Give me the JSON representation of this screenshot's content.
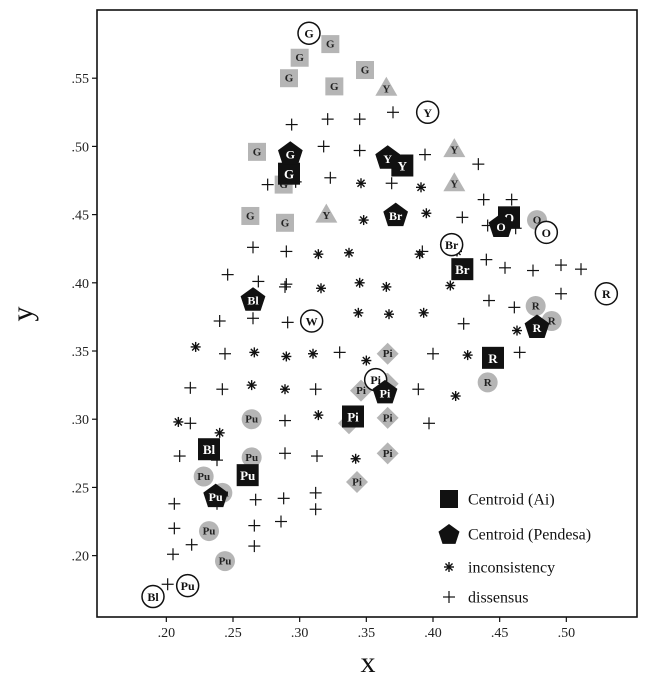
{
  "chart_data": {
    "type": "scatter",
    "xlabel": "x",
    "ylabel": "y",
    "xlim": [
      0.148,
      0.553
    ],
    "ylim": [
      0.155,
      0.6
    ],
    "x_ticks": [
      0.2,
      0.25,
      0.3,
      0.35,
      0.4,
      0.45,
      0.5
    ],
    "x_tick_labels": [
      ".20",
      ".25",
      ".30",
      ".35",
      ".40",
      ".45",
      ".50"
    ],
    "y_ticks": [
      0.2,
      0.25,
      0.3,
      0.35,
      0.4,
      0.45,
      0.5,
      0.55
    ],
    "y_tick_labels": [
      ".20",
      ".25",
      ".30",
      ".35",
      ".40",
      ".45",
      ".50",
      ".55"
    ],
    "grid": false,
    "legend": {
      "position": "bottom-right",
      "entries": [
        {
          "marker": "square",
          "label": "Centroid (Ai)"
        },
        {
          "marker": "pentagon",
          "label": "Centroid (Pendesa)"
        },
        {
          "marker": "asterisk",
          "label": "inconsistency"
        },
        {
          "marker": "plus",
          "label": "dissensus"
        }
      ]
    },
    "series": [
      {
        "name": "Centroid (Ai)",
        "marker": "square",
        "points": [
          {
            "x": 0.292,
            "y": 0.48,
            "label": "G"
          },
          {
            "x": 0.377,
            "y": 0.486,
            "label": "Y"
          },
          {
            "x": 0.457,
            "y": 0.448,
            "label": "O"
          },
          {
            "x": 0.422,
            "y": 0.41,
            "label": "Br"
          },
          {
            "x": 0.445,
            "y": 0.345,
            "label": "R"
          },
          {
            "x": 0.34,
            "y": 0.302,
            "label": "Pi"
          },
          {
            "x": 0.232,
            "y": 0.278,
            "label": "Bl"
          },
          {
            "x": 0.261,
            "y": 0.259,
            "label": "Pu"
          }
        ]
      },
      {
        "name": "Centroid (Pendesa)",
        "marker": "pentagon",
        "points": [
          {
            "x": 0.293,
            "y": 0.495,
            "label": "G"
          },
          {
            "x": 0.366,
            "y": 0.492,
            "label": "Y"
          },
          {
            "x": 0.451,
            "y": 0.442,
            "label": "O"
          },
          {
            "x": 0.372,
            "y": 0.45,
            "label": "Br"
          },
          {
            "x": 0.478,
            "y": 0.368,
            "label": "R"
          },
          {
            "x": 0.364,
            "y": 0.32,
            "label": "Pi"
          },
          {
            "x": 0.265,
            "y": 0.388,
            "label": "Bl"
          },
          {
            "x": 0.237,
            "y": 0.244,
            "label": "Pu"
          }
        ]
      },
      {
        "name": "circled",
        "marker": "circle-open",
        "points": [
          {
            "x": 0.307,
            "y": 0.583,
            "label": "G"
          },
          {
            "x": 0.396,
            "y": 0.525,
            "label": "Y"
          },
          {
            "x": 0.485,
            "y": 0.437,
            "label": "O"
          },
          {
            "x": 0.414,
            "y": 0.428,
            "label": "Br"
          },
          {
            "x": 0.53,
            "y": 0.392,
            "label": "R"
          },
          {
            "x": 0.309,
            "y": 0.372,
            "label": "W"
          },
          {
            "x": 0.357,
            "y": 0.329,
            "label": "Pi"
          },
          {
            "x": 0.19,
            "y": 0.17,
            "label": "Bl"
          },
          {
            "x": 0.216,
            "y": 0.178,
            "label": "Pu"
          }
        ]
      },
      {
        "name": "gray-square",
        "marker": "square-gray",
        "points": [
          {
            "x": 0.323,
            "y": 0.575,
            "label": "G"
          },
          {
            "x": 0.3,
            "y": 0.565,
            "label": "G"
          },
          {
            "x": 0.292,
            "y": 0.55,
            "label": "G"
          },
          {
            "x": 0.326,
            "y": 0.544,
            "label": "G"
          },
          {
            "x": 0.349,
            "y": 0.556,
            "label": "G"
          },
          {
            "x": 0.268,
            "y": 0.496,
            "label": "G"
          },
          {
            "x": 0.288,
            "y": 0.472,
            "label": "G"
          },
          {
            "x": 0.263,
            "y": 0.449,
            "label": "G"
          },
          {
            "x": 0.289,
            "y": 0.444,
            "label": "G"
          }
        ]
      },
      {
        "name": "gray-triangle",
        "marker": "triangle-gray",
        "points": [
          {
            "x": 0.365,
            "y": 0.543,
            "label": "Y"
          },
          {
            "x": 0.416,
            "y": 0.498,
            "label": "Y"
          },
          {
            "x": 0.416,
            "y": 0.473,
            "label": "Y"
          },
          {
            "x": 0.32,
            "y": 0.45,
            "label": "Y"
          }
        ]
      },
      {
        "name": "gray-circle",
        "marker": "circle-gray",
        "points": [
          {
            "x": 0.478,
            "y": 0.446,
            "label": "O"
          },
          {
            "x": 0.477,
            "y": 0.383,
            "label": "R"
          },
          {
            "x": 0.489,
            "y": 0.372,
            "label": "R"
          },
          {
            "x": 0.441,
            "y": 0.327,
            "label": "R"
          },
          {
            "x": 0.362,
            "y": 0.327,
            "label": "Pi"
          },
          {
            "x": 0.228,
            "y": 0.258,
            "label": "Pu"
          },
          {
            "x": 0.264,
            "y": 0.3,
            "label": "Pu"
          },
          {
            "x": 0.264,
            "y": 0.272,
            "label": "Pu"
          },
          {
            "x": 0.242,
            "y": 0.246,
            "label": "Pu"
          },
          {
            "x": 0.232,
            "y": 0.218,
            "label": "Pu"
          },
          {
            "x": 0.244,
            "y": 0.196,
            "label": "Pu"
          }
        ]
      },
      {
        "name": "gray-diamond",
        "marker": "diamond-gray",
        "points": [
          {
            "x": 0.366,
            "y": 0.348,
            "label": "Pi"
          },
          {
            "x": 0.346,
            "y": 0.321,
            "label": "Pi"
          },
          {
            "x": 0.366,
            "y": 0.326,
            "label": "Pi"
          },
          {
            "x": 0.366,
            "y": 0.301,
            "label": "Pi"
          },
          {
            "x": 0.337,
            "y": 0.297,
            "label": "Pi"
          },
          {
            "x": 0.366,
            "y": 0.275,
            "label": "Pi"
          },
          {
            "x": 0.343,
            "y": 0.254,
            "label": "Pi"
          }
        ]
      },
      {
        "name": "inconsistency",
        "marker": "asterisk",
        "points": [
          {
            "x": 0.346,
            "y": 0.473
          },
          {
            "x": 0.391,
            "y": 0.47
          },
          {
            "x": 0.348,
            "y": 0.446
          },
          {
            "x": 0.395,
            "y": 0.451
          },
          {
            "x": 0.418,
            "y": 0.423
          },
          {
            "x": 0.314,
            "y": 0.421
          },
          {
            "x": 0.337,
            "y": 0.422
          },
          {
            "x": 0.39,
            "y": 0.421
          },
          {
            "x": 0.345,
            "y": 0.4
          },
          {
            "x": 0.365,
            "y": 0.397
          },
          {
            "x": 0.413,
            "y": 0.398
          },
          {
            "x": 0.316,
            "y": 0.396
          },
          {
            "x": 0.463,
            "y": 0.365
          },
          {
            "x": 0.344,
            "y": 0.378
          },
          {
            "x": 0.367,
            "y": 0.377
          },
          {
            "x": 0.393,
            "y": 0.378
          },
          {
            "x": 0.222,
            "y": 0.353
          },
          {
            "x": 0.266,
            "y": 0.349
          },
          {
            "x": 0.29,
            "y": 0.346
          },
          {
            "x": 0.31,
            "y": 0.348
          },
          {
            "x": 0.35,
            "y": 0.343
          },
          {
            "x": 0.426,
            "y": 0.347
          },
          {
            "x": 0.264,
            "y": 0.325
          },
          {
            "x": 0.289,
            "y": 0.322
          },
          {
            "x": 0.417,
            "y": 0.317
          },
          {
            "x": 0.209,
            "y": 0.298
          },
          {
            "x": 0.314,
            "y": 0.303
          },
          {
            "x": 0.24,
            "y": 0.29
          },
          {
            "x": 0.342,
            "y": 0.271
          }
        ]
      },
      {
        "name": "dissensus",
        "marker": "plus",
        "points": [
          {
            "x": 0.294,
            "y": 0.516
          },
          {
            "x": 0.321,
            "y": 0.52
          },
          {
            "x": 0.345,
            "y": 0.52
          },
          {
            "x": 0.37,
            "y": 0.525
          },
          {
            "x": 0.297,
            "y": 0.496
          },
          {
            "x": 0.318,
            "y": 0.5
          },
          {
            "x": 0.345,
            "y": 0.497
          },
          {
            "x": 0.394,
            "y": 0.494
          },
          {
            "x": 0.434,
            "y": 0.487
          },
          {
            "x": 0.297,
            "y": 0.474
          },
          {
            "x": 0.276,
            "y": 0.472
          },
          {
            "x": 0.323,
            "y": 0.477
          },
          {
            "x": 0.369,
            "y": 0.473
          },
          {
            "x": 0.438,
            "y": 0.461
          },
          {
            "x": 0.459,
            "y": 0.461
          },
          {
            "x": 0.422,
            "y": 0.448
          },
          {
            "x": 0.441,
            "y": 0.442
          },
          {
            "x": 0.462,
            "y": 0.44
          },
          {
            "x": 0.265,
            "y": 0.426
          },
          {
            "x": 0.29,
            "y": 0.423
          },
          {
            "x": 0.392,
            "y": 0.423
          },
          {
            "x": 0.44,
            "y": 0.417
          },
          {
            "x": 0.246,
            "y": 0.406
          },
          {
            "x": 0.269,
            "y": 0.401
          },
          {
            "x": 0.29,
            "y": 0.399
          },
          {
            "x": 0.454,
            "y": 0.411
          },
          {
            "x": 0.475,
            "y": 0.409
          },
          {
            "x": 0.496,
            "y": 0.413
          },
          {
            "x": 0.511,
            "y": 0.41
          },
          {
            "x": 0.24,
            "y": 0.372
          },
          {
            "x": 0.265,
            "y": 0.374
          },
          {
            "x": 0.291,
            "y": 0.371
          },
          {
            "x": 0.442,
            "y": 0.387
          },
          {
            "x": 0.461,
            "y": 0.382
          },
          {
            "x": 0.496,
            "y": 0.392
          },
          {
            "x": 0.289,
            "y": 0.397
          },
          {
            "x": 0.244,
            "y": 0.348
          },
          {
            "x": 0.33,
            "y": 0.349
          },
          {
            "x": 0.4,
            "y": 0.348
          },
          {
            "x": 0.465,
            "y": 0.349
          },
          {
            "x": 0.423,
            "y": 0.37
          },
          {
            "x": 0.218,
            "y": 0.323
          },
          {
            "x": 0.242,
            "y": 0.322
          },
          {
            "x": 0.312,
            "y": 0.322
          },
          {
            "x": 0.389,
            "y": 0.322
          },
          {
            "x": 0.218,
            "y": 0.297
          },
          {
            "x": 0.289,
            "y": 0.299
          },
          {
            "x": 0.397,
            "y": 0.297
          },
          {
            "x": 0.313,
            "y": 0.273
          },
          {
            "x": 0.289,
            "y": 0.275
          },
          {
            "x": 0.21,
            "y": 0.273
          },
          {
            "x": 0.238,
            "y": 0.27
          },
          {
            "x": 0.267,
            "y": 0.241
          },
          {
            "x": 0.288,
            "y": 0.242
          },
          {
            "x": 0.312,
            "y": 0.246
          },
          {
            "x": 0.238,
            "y": 0.238
          },
          {
            "x": 0.206,
            "y": 0.238
          },
          {
            "x": 0.312,
            "y": 0.234
          },
          {
            "x": 0.206,
            "y": 0.22
          },
          {
            "x": 0.266,
            "y": 0.222
          },
          {
            "x": 0.286,
            "y": 0.225
          },
          {
            "x": 0.219,
            "y": 0.208
          },
          {
            "x": 0.266,
            "y": 0.207
          },
          {
            "x": 0.205,
            "y": 0.201
          },
          {
            "x": 0.201,
            "y": 0.179
          }
        ]
      }
    ]
  }
}
